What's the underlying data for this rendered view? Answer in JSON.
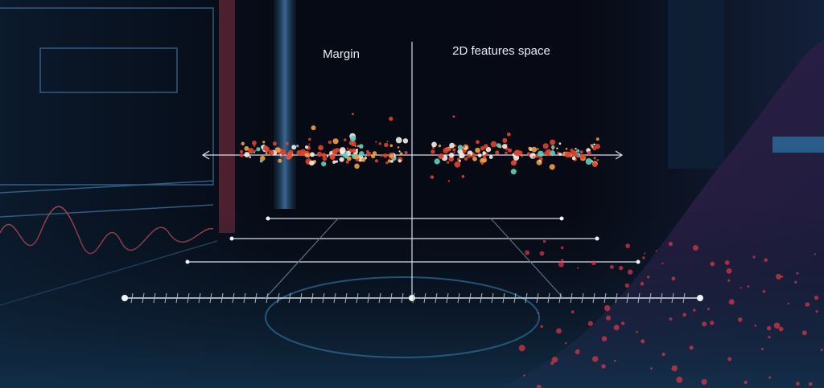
{
  "labels": {
    "margin": "Margin",
    "space": "2D features space"
  }
}
